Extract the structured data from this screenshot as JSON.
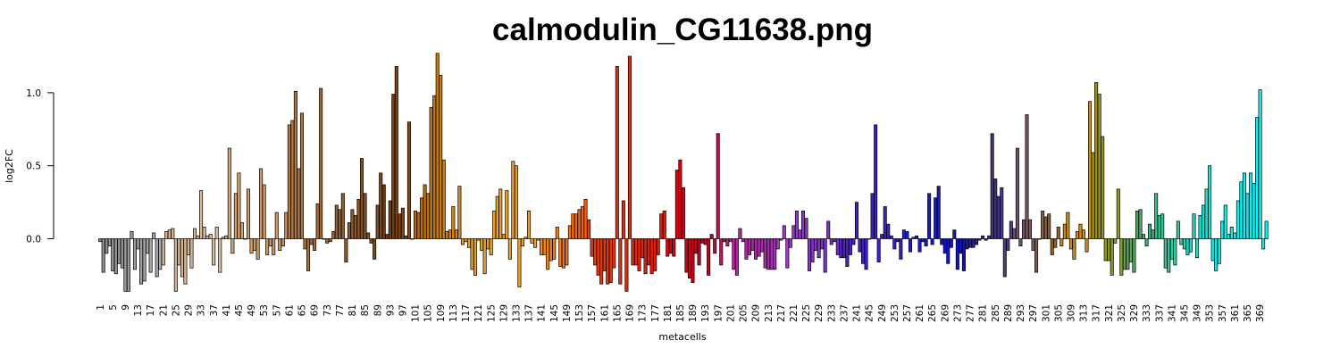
{
  "chart_data": {
    "type": "bar",
    "title": "calmodulin_CG11638.png",
    "xlabel": "metacells",
    "ylabel": "log2FC",
    "ylim": [
      -0.39,
      1.3
    ],
    "yticks": [
      0.0,
      0.5,
      1.0
    ],
    "ytick_labels": [
      "0.0",
      "0.5",
      "1.0"
    ],
    "x_tick_every": 4,
    "grid": false,
    "legend": "none",
    "values": [
      -0.02,
      -0.23,
      -0.1,
      -0.05,
      -0.22,
      -0.24,
      -0.17,
      -0.2,
      -0.36,
      -0.36,
      0.05,
      -0.21,
      -0.07,
      -0.31,
      -0.29,
      -0.1,
      -0.23,
      0.04,
      -0.26,
      -0.21,
      -0.18,
      0.05,
      0.06,
      0.07,
      -0.36,
      -0.18,
      -0.26,
      -0.31,
      -0.11,
      -0.2,
      0.07,
      0.02,
      0.33,
      0.08,
      0.02,
      0.03,
      -0.18,
      0.08,
      -0.23,
      0.01,
      0.02,
      0.62,
      -0.1,
      0.31,
      0.45,
      0.11,
      0.0,
      0.34,
      -0.1,
      -0.08,
      -0.14,
      0.48,
      0.37,
      -0.11,
      -0.05,
      -0.11,
      0.18,
      -0.08,
      -0.05,
      0.18,
      0.78,
      0.81,
      1.01,
      0.48,
      0.86,
      -0.07,
      -0.22,
      -0.04,
      -0.08,
      0.24,
      1.03,
      0.0,
      -0.03,
      -0.02,
      0.05,
      0.23,
      0.2,
      0.31,
      -0.16,
      0.11,
      0.2,
      0.16,
      0.27,
      0.55,
      0.31,
      0.04,
      -0.03,
      -0.14,
      0.23,
      0.45,
      0.37,
      0.03,
      0.26,
      0.99,
      1.18,
      0.17,
      0.21,
      0.02,
      0.8,
      0.0,
      0.19,
      0.18,
      0.28,
      0.37,
      0.31,
      0.9,
      0.98,
      1.27,
      1.12,
      0.54,
      0.05,
      0.06,
      0.22,
      0.06,
      0.36,
      -0.04,
      -0.02,
      -0.06,
      -0.21,
      -0.25,
      -0.01,
      -0.08,
      -0.24,
      -0.07,
      -0.11,
      0.19,
      0.29,
      0.34,
      0.03,
      0.33,
      -0.14,
      0.53,
      0.5,
      -0.33,
      -0.05,
      0.01,
      0.19,
      -0.03,
      -0.06,
      -0.01,
      -0.11,
      -0.11,
      -0.21,
      -0.15,
      -0.14,
      0.08,
      -0.19,
      -0.2,
      -0.18,
      0.09,
      0.17,
      0.17,
      0.2,
      0.22,
      0.27,
      0.13,
      -0.12,
      -0.18,
      -0.25,
      -0.31,
      -0.22,
      -0.31,
      -0.3,
      -0.2,
      1.18,
      -0.31,
      0.26,
      -0.36,
      1.25,
      -0.18,
      -0.18,
      -0.22,
      -0.13,
      -0.24,
      -0.18,
      -0.24,
      -0.22,
      -0.11,
      0.17,
      0.19,
      -0.12,
      -0.1,
      -0.12,
      0.47,
      0.54,
      0.35,
      -0.23,
      -0.27,
      -0.3,
      -0.1,
      -0.18,
      -0.03,
      -0.04,
      -0.25,
      0.03,
      -0.1,
      0.72,
      -0.18,
      -0.02,
      -0.05,
      -0.02,
      -0.21,
      -0.25,
      0.07,
      -0.02,
      -0.14,
      -0.11,
      -0.08,
      -0.14,
      -0.12,
      -0.09,
      -0.2,
      -0.21,
      -0.21,
      -0.21,
      -0.07,
      -0.01,
      0.09,
      -0.2,
      -0.06,
      0.09,
      0.19,
      0.06,
      0.19,
      0.14,
      -0.22,
      -0.16,
      -0.08,
      -0.13,
      -0.07,
      -0.23,
      0.12,
      -0.04,
      -0.02,
      -0.11,
      -0.13,
      -0.13,
      -0.19,
      -0.11,
      -0.04,
      0.25,
      -0.09,
      -0.17,
      -0.21,
      0.0,
      0.31,
      0.78,
      -0.16,
      0.03,
      0.22,
      0.1,
      0.02,
      -0.07,
      -0.02,
      -0.14,
      0.06,
      0.05,
      -0.09,
      0.01,
      0.02,
      -0.09,
      -0.02,
      -0.05,
      0.31,
      -0.04,
      0.28,
      0.36,
      -0.04,
      -0.1,
      -0.17,
      -0.06,
      0.06,
      -0.21,
      -0.1,
      -0.22,
      -0.07,
      -0.06,
      -0.06,
      -0.04,
      -0.01,
      0.02,
      -0.01,
      0.02,
      0.72,
      0.41,
      0.29,
      0.35,
      -0.26,
      -0.08,
      0.12,
      0.07,
      0.62,
      -0.05,
      0.13,
      0.85,
      0.13,
      -0.08,
      -0.23,
      0.0,
      0.19,
      0.15,
      0.17,
      -0.11,
      -0.06,
      0.08,
      -0.05,
      0.1,
      0.18,
      -0.07,
      -0.14,
      0.05,
      0.1,
      0.06,
      -0.09,
      0.94,
      0.59,
      1.07,
      0.99,
      0.7,
      -0.15,
      -0.15,
      -0.25,
      -0.03,
      0.34,
      -0.25,
      -0.21,
      -0.21,
      -0.16,
      -0.23,
      0.19,
      0.2,
      0.03,
      -0.05,
      0.1,
      0.06,
      0.31,
      0.16,
      0.17,
      -0.2,
      -0.23,
      -0.14,
      -0.18,
      0.12,
      -0.04,
      -0.07,
      -0.11,
      -0.09,
      0.17,
      -0.13,
      0.16,
      0.23,
      0.34,
      0.5,
      -0.15,
      -0.22,
      -0.17,
      0.12,
      0.23,
      0.03,
      0.08,
      0.04,
      0.26,
      0.39,
      0.45,
      0.31,
      0.45,
      0.38,
      0.83,
      1.02,
      -0.07,
      0.12
    ],
    "group_colors": [
      {
        "end": 20,
        "from": "#8a8a8a",
        "to": "#ababab"
      },
      {
        "end": 40,
        "from": "#d0b090",
        "to": "#dcc09e"
      },
      {
        "end": 60,
        "from": "#d4a878",
        "to": "#c89060"
      },
      {
        "end": 90,
        "from": "#b07a48",
        "to": "#7a4a1c"
      },
      {
        "end": 100,
        "from": "#6e3a10",
        "to": "#8a4a14"
      },
      {
        "end": 115,
        "from": "#b06a10",
        "to": "#d48a20"
      },
      {
        "end": 140,
        "from": "#e0a020",
        "to": "#f0a030"
      },
      {
        "end": 155,
        "from": "#f08a20",
        "to": "#f06010"
      },
      {
        "end": 180,
        "from": "#e04010",
        "to": "#e01808"
      },
      {
        "end": 195,
        "from": "#e00010",
        "to": "#c00020"
      },
      {
        "end": 200,
        "from": "#b01048",
        "to": "#c02070"
      },
      {
        "end": 215,
        "from": "#c020a0",
        "to": "#a030b0"
      },
      {
        "end": 235,
        "from": "#a040c8",
        "to": "#7030c0"
      },
      {
        "end": 255,
        "from": "#5020c8",
        "to": "#3020d0"
      },
      {
        "end": 275,
        "from": "#2020d0",
        "to": "#1010c0"
      },
      {
        "end": 290,
        "from": "#20208a",
        "to": "#504080"
      },
      {
        "end": 300,
        "from": "#705070",
        "to": "#806050"
      },
      {
        "end": 305,
        "from": "#8a5a30",
        "to": "#906030"
      },
      {
        "end": 315,
        "from": "#c08820",
        "to": "#d09020"
      },
      {
        "end": 325,
        "from": "#a09010",
        "to": "#80a030"
      },
      {
        "end": 335,
        "from": "#60a050",
        "to": "#40b080"
      },
      {
        "end": 345,
        "from": "#30c090",
        "to": "#30d0b0"
      },
      {
        "end": 361,
        "from": "#20d8c8",
        "to": "#10f0f0"
      }
    ]
  }
}
